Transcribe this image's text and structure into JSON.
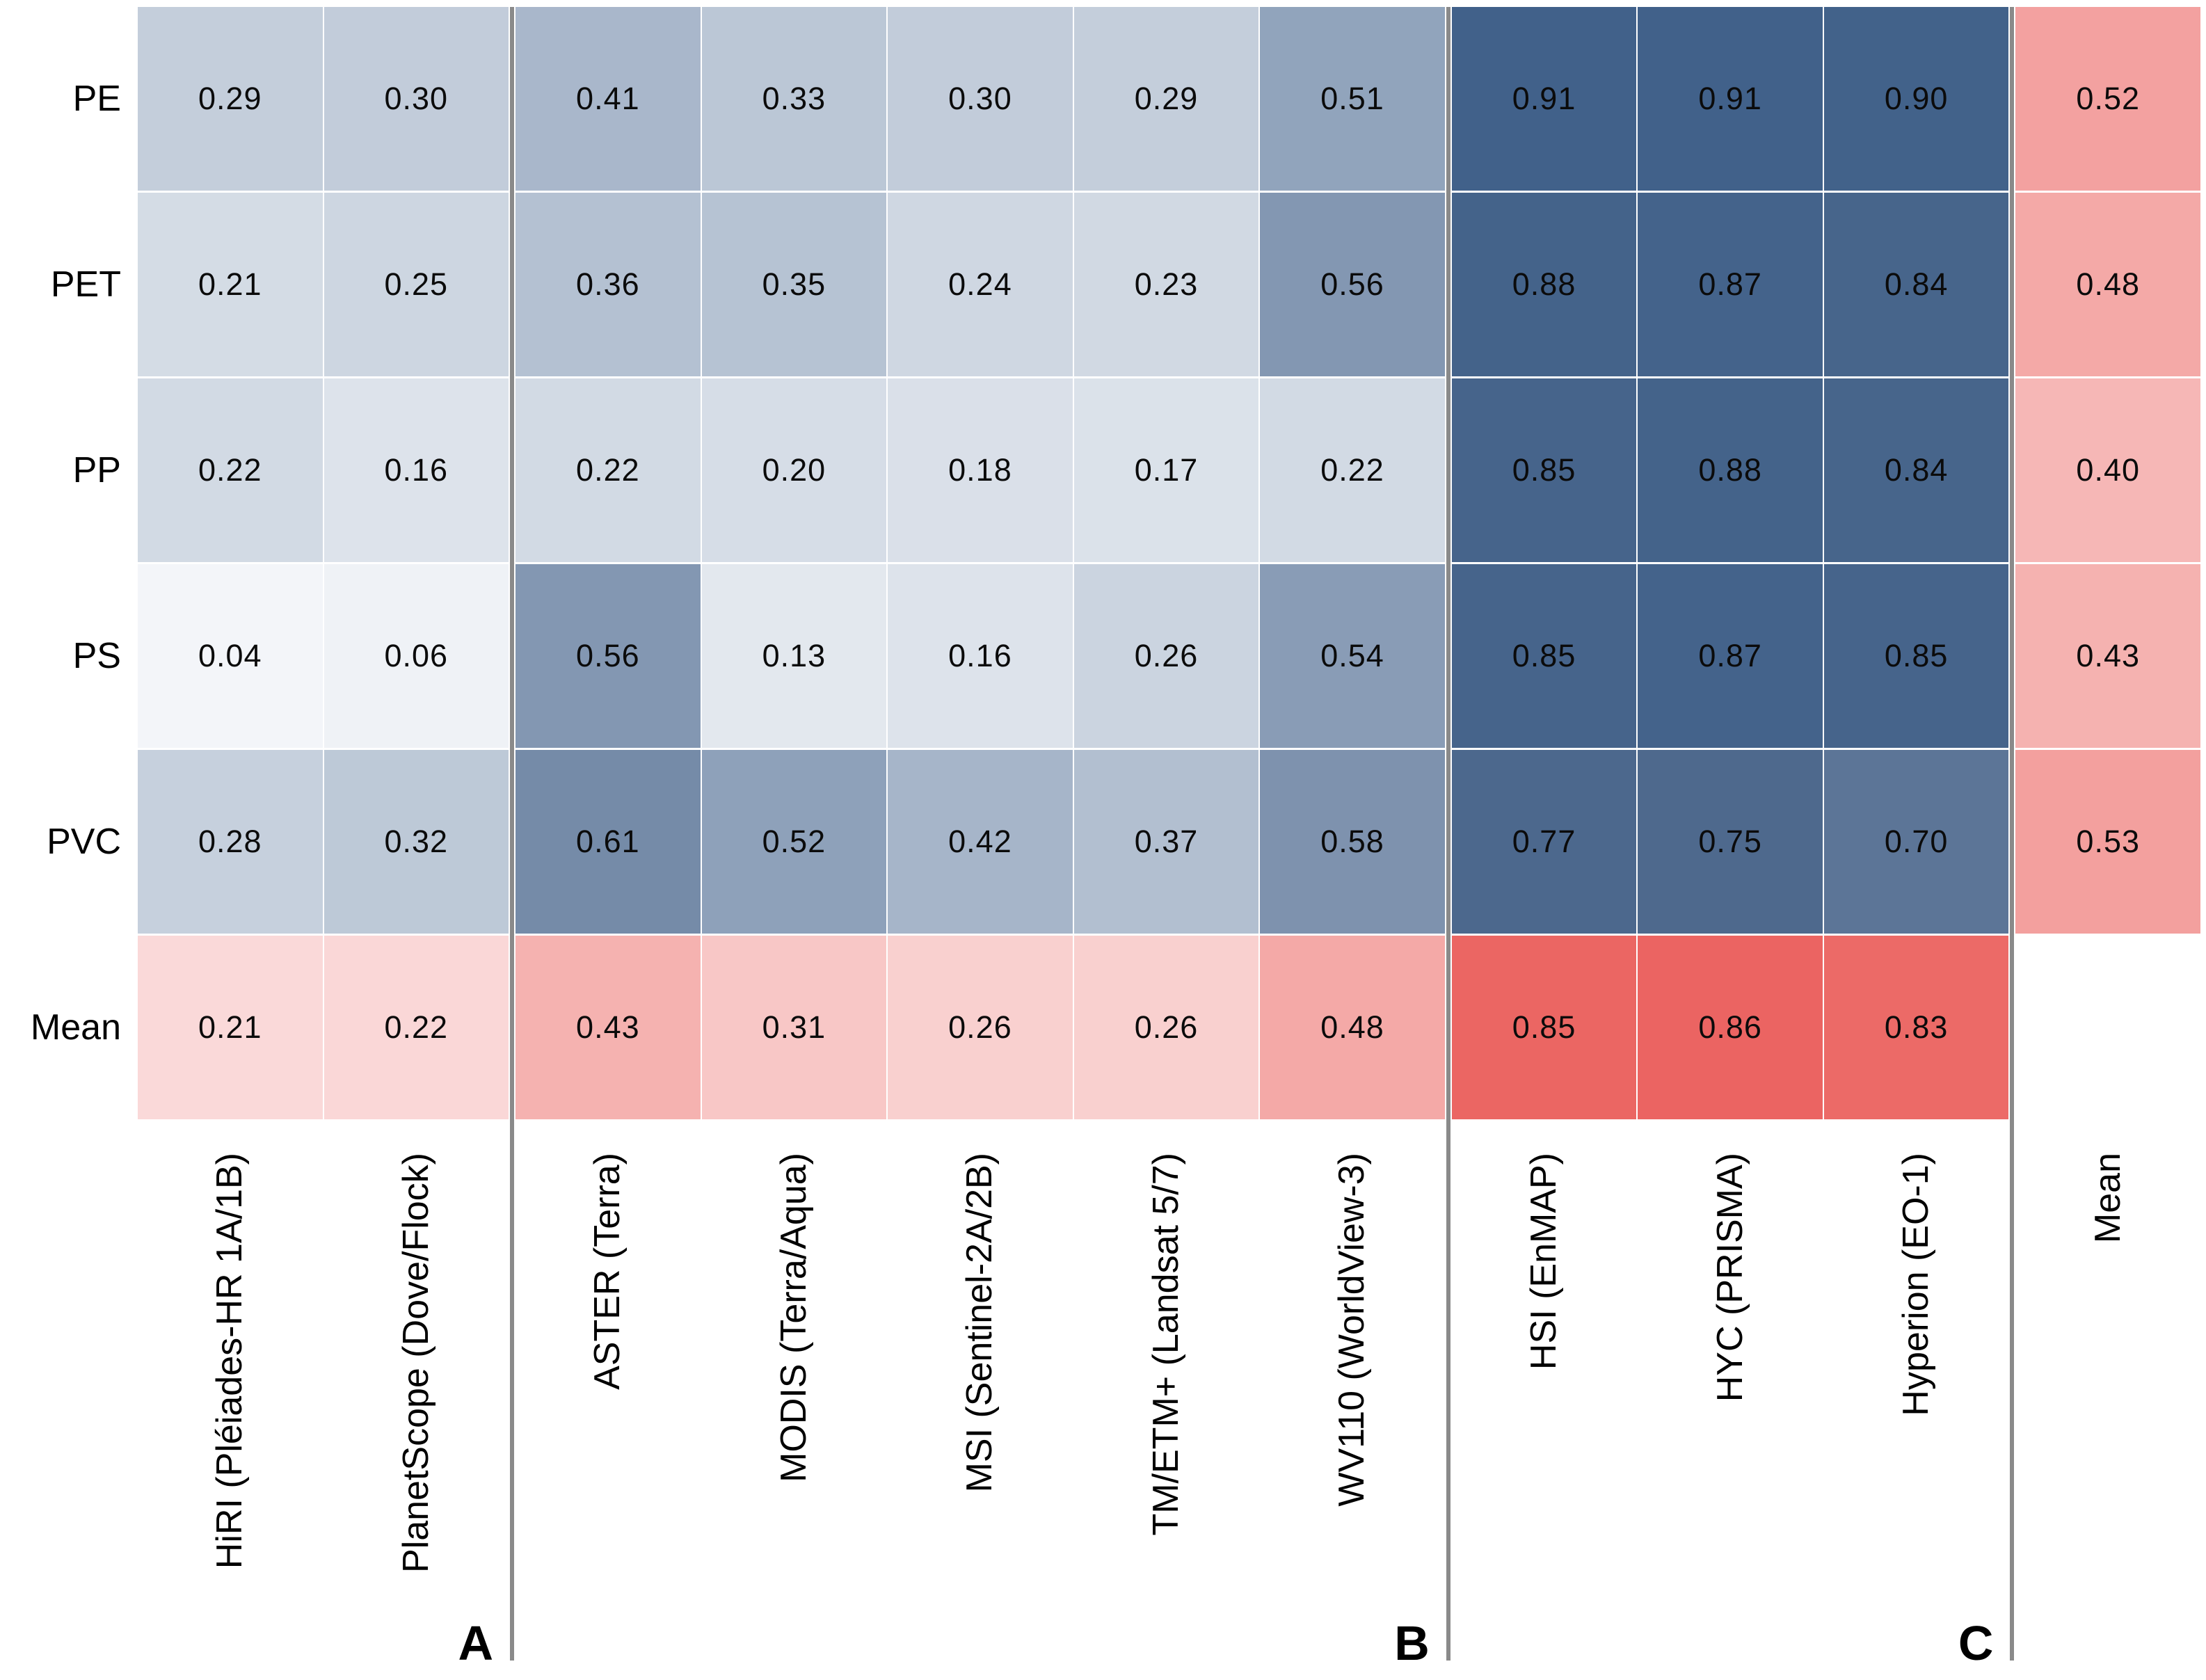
{
  "chart_data": {
    "type": "heatmap",
    "title": "",
    "rows": [
      "PE",
      "PET",
      "PP",
      "PS",
      "PVC",
      "Mean"
    ],
    "columns": [
      "HiRI (Pléiades-HR 1A/1B)",
      "PlanetScope (Dove/Flock)",
      "ASTER (Terra)",
      "MODIS (Terra/Aqua)",
      "MSI (Sentinel-2A/2B)",
      "TM/ETM+ (Landsat 5/7)",
      "WV110 (WorldView-3)",
      "HSI (EnMAP)",
      "HYC (PRISMA)",
      "Hyperion (EO-1)",
      "Mean"
    ],
    "values": [
      [
        0.29,
        0.3,
        0.41,
        0.33,
        0.3,
        0.29,
        0.51,
        0.91,
        0.91,
        0.9,
        0.52
      ],
      [
        0.21,
        0.25,
        0.36,
        0.35,
        0.24,
        0.23,
        0.56,
        0.88,
        0.87,
        0.84,
        0.48
      ],
      [
        0.22,
        0.16,
        0.22,
        0.2,
        0.18,
        0.17,
        0.22,
        0.85,
        0.88,
        0.84,
        0.4
      ],
      [
        0.04,
        0.06,
        0.56,
        0.13,
        0.16,
        0.26,
        0.54,
        0.85,
        0.87,
        0.85,
        0.43
      ],
      [
        0.28,
        0.32,
        0.61,
        0.52,
        0.42,
        0.37,
        0.58,
        0.77,
        0.75,
        0.7,
        0.53
      ],
      [
        0.21,
        0.22,
        0.43,
        0.31,
        0.26,
        0.26,
        0.48,
        0.85,
        0.86,
        0.83,
        null
      ]
    ],
    "value_decimals": 2,
    "mean_row_index": 5,
    "mean_column_index": 10,
    "column_groups": [
      {
        "label": "A",
        "last_column_index": 1
      },
      {
        "label": "B",
        "last_column_index": 6
      },
      {
        "label": "C",
        "last_column_index": 9
      }
    ],
    "layout": {
      "grid_on": true,
      "legend": "none",
      "column_labels_rotated": true
    },
    "colors": {
      "blue_scale_stops": [
        {
          "t": 0.0,
          "hex": "#fafbfd"
        },
        {
          "t": 0.25,
          "hex": "#cdd6e1"
        },
        {
          "t": 0.5,
          "hex": "#94a6be"
        },
        {
          "t": 0.75,
          "hex": "#4e698d"
        },
        {
          "t": 1.0,
          "hex": "#3a5d88"
        }
      ],
      "red_scale_stops": [
        {
          "t": 0.0,
          "hex": "#ffffff"
        },
        {
          "t": 1.0,
          "hex": "#e84b48"
        }
      ],
      "separator": "#8a8a8a",
      "gridline": "#ffffff",
      "cell_text": "#0b0b0b",
      "label_text": "#000000"
    }
  }
}
